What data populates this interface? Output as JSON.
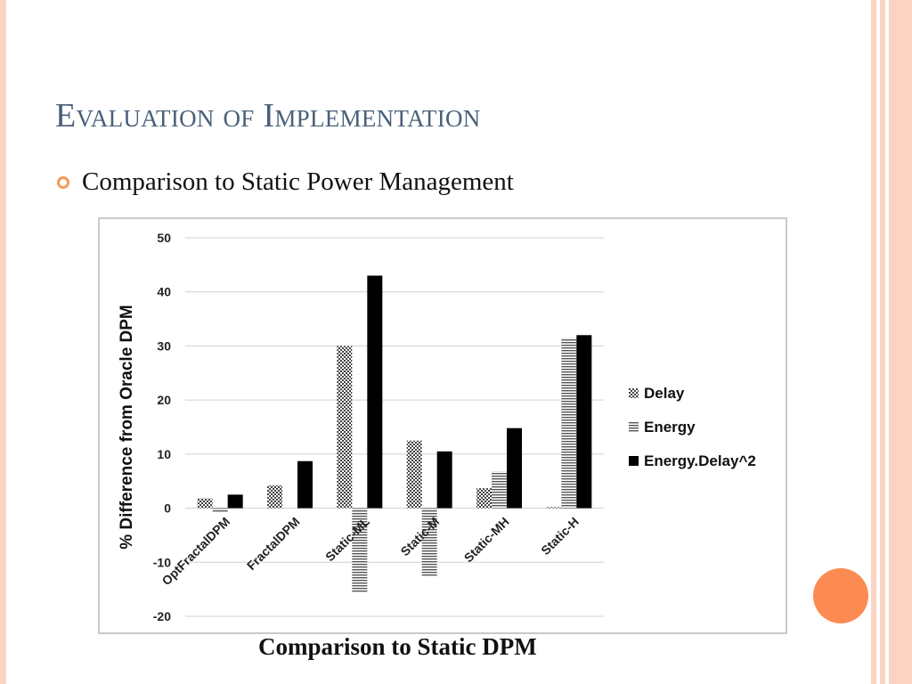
{
  "slide": {
    "title": "Evaluation of Implementation",
    "bullet": "Comparison to Static Power Management",
    "caption": "Comparison to Static DPM"
  },
  "theme": {
    "accent": "#fb8b52",
    "title_color": "#4a6079",
    "frame": "#fbd3c2"
  },
  "icons": {
    "bullet": "ring-bullet-icon",
    "decoration": "orange-circle"
  },
  "chart_data": {
    "type": "bar",
    "categories": [
      "OptFractalDPM",
      "FractalDPM",
      "Static-ML",
      "Static-M",
      "Static-MH",
      "Static-H"
    ],
    "series": [
      {
        "name": "Delay",
        "values": [
          1.8,
          4.2,
          30,
          12.5,
          3.7,
          0.2
        ],
        "pattern": "checker"
      },
      {
        "name": "Energy",
        "values": [
          -0.7,
          0,
          -15.5,
          -12.5,
          6.8,
          31.5
        ],
        "pattern": "horizontal-lines"
      },
      {
        "name": "Energy.Delay^2",
        "values": [
          2.5,
          8.7,
          43,
          10.5,
          14.8,
          32
        ],
        "pattern": "solid"
      }
    ],
    "ylabel": "% Difference from Oracle DPM",
    "xlabel": "",
    "ylim": [
      -20,
      50
    ],
    "yticks": [
      50,
      40,
      30,
      20,
      10,
      0,
      -10,
      -20
    ],
    "grid": true,
    "legend": "right"
  }
}
